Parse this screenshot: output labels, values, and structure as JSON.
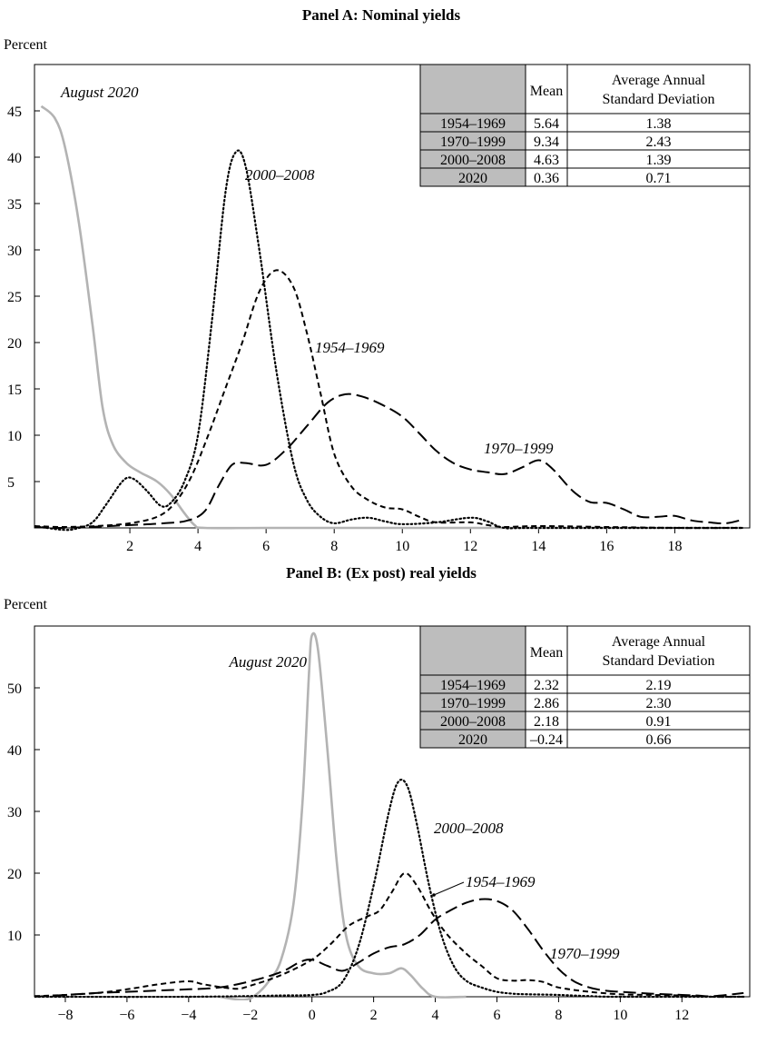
{
  "chart_data": [
    {
      "type": "line",
      "title": "Panel A: Nominal yields",
      "ylabel": "Percent",
      "xlabel": "",
      "xlim": [
        -0.8,
        20.2
      ],
      "ylim": [
        0,
        50
      ],
      "xticks": [
        2,
        4,
        6,
        8,
        10,
        12,
        14,
        16,
        18
      ],
      "yticks": [
        5,
        10,
        15,
        20,
        25,
        30,
        35,
        40,
        45
      ],
      "series": [
        {
          "name": "August 2020",
          "style": "solid-gray",
          "points": [
            [
              -0.6,
              45.5
            ],
            [
              -0.2,
              44.2
            ],
            [
              0.1,
              41
            ],
            [
              0.5,
              33
            ],
            [
              0.9,
              22
            ],
            [
              1.2,
              13
            ],
            [
              1.5,
              9
            ],
            [
              1.9,
              7
            ],
            [
              2.3,
              6
            ],
            [
              2.8,
              5
            ],
            [
              3.2,
              3.6
            ],
            [
              3.6,
              1.6
            ],
            [
              3.9,
              0.3
            ],
            [
              4.2,
              0
            ],
            [
              6,
              0
            ],
            [
              9,
              0
            ],
            [
              20,
              0
            ]
          ]
        },
        {
          "name": "2000–2008",
          "style": "dotted",
          "points": [
            [
              -0.8,
              0.2
            ],
            [
              0,
              -0.2
            ],
            [
              0.4,
              -0.1
            ],
            [
              0.9,
              0.6
            ],
            [
              1.3,
              2.5
            ],
            [
              1.8,
              5.1
            ],
            [
              2.1,
              5.3
            ],
            [
              2.5,
              4
            ],
            [
              2.9,
              2.4
            ],
            [
              3.2,
              2.7
            ],
            [
              3.6,
              5
            ],
            [
              4,
              10
            ],
            [
              4.4,
              22
            ],
            [
              4.8,
              36
            ],
            [
              5.1,
              40.5
            ],
            [
              5.4,
              39
            ],
            [
              5.8,
              30
            ],
            [
              6.3,
              17
            ],
            [
              6.8,
              7
            ],
            [
              7.2,
              3
            ],
            [
              7.6,
              1.2
            ],
            [
              8,
              0.5
            ],
            [
              8.5,
              0.9
            ],
            [
              9,
              1.1
            ],
            [
              9.5,
              0.7
            ],
            [
              10,
              0.4
            ],
            [
              11,
              0.6
            ],
            [
              12,
              1.1
            ],
            [
              12.5,
              0.7
            ],
            [
              13,
              0
            ],
            [
              14,
              0
            ],
            [
              20,
              0
            ]
          ]
        },
        {
          "name": "1954–1969",
          "style": "short-dash",
          "points": [
            [
              -0.8,
              0.2
            ],
            [
              0,
              0.1
            ],
            [
              1,
              0.2
            ],
            [
              2,
              0.5
            ],
            [
              2.8,
              1.2
            ],
            [
              3.3,
              2.6
            ],
            [
              3.8,
              5.5
            ],
            [
              4.3,
              10
            ],
            [
              4.8,
              15
            ],
            [
              5.3,
              20
            ],
            [
              5.8,
              25.5
            ],
            [
              6.3,
              27.8
            ],
            [
              6.8,
              26
            ],
            [
              7.2,
              21
            ],
            [
              7.6,
              14.5
            ],
            [
              8,
              8
            ],
            [
              8.5,
              4.5
            ],
            [
              9,
              3
            ],
            [
              9.5,
              2.2
            ],
            [
              10,
              2
            ],
            [
              10.5,
              1.2
            ],
            [
              11,
              0.6
            ],
            [
              12,
              0.6
            ],
            [
              12.5,
              0.3
            ],
            [
              13,
              0.1
            ],
            [
              14,
              0.2
            ],
            [
              16,
              0.1
            ],
            [
              18,
              0
            ],
            [
              20,
              0
            ]
          ]
        },
        {
          "name": "1970–1999",
          "style": "long-dash",
          "points": [
            [
              -0.8,
              0.1
            ],
            [
              0,
              0
            ],
            [
              2,
              0.3
            ],
            [
              3,
              0.5
            ],
            [
              3.7,
              0.8
            ],
            [
              4.2,
              1.8
            ],
            [
              4.6,
              4.5
            ],
            [
              5,
              6.8
            ],
            [
              5.4,
              7
            ],
            [
              6,
              6.8
            ],
            [
              6.6,
              8.5
            ],
            [
              7.2,
              11
            ],
            [
              7.8,
              13.5
            ],
            [
              8.3,
              14.4
            ],
            [
              8.8,
              14.2
            ],
            [
              9.4,
              13.3
            ],
            [
              10,
              12
            ],
            [
              10.5,
              10.2
            ],
            [
              11,
              8.3
            ],
            [
              11.5,
              7
            ],
            [
              12,
              6.3
            ],
            [
              12.5,
              6
            ],
            [
              13,
              5.8
            ],
            [
              13.5,
              6.5
            ],
            [
              14,
              7.3
            ],
            [
              14.4,
              6.4
            ],
            [
              15,
              4
            ],
            [
              15.5,
              2.8
            ],
            [
              16,
              2.7
            ],
            [
              16.5,
              2
            ],
            [
              17,
              1.2
            ],
            [
              17.5,
              1.2
            ],
            [
              18,
              1.3
            ],
            [
              18.5,
              0.8
            ],
            [
              19,
              0.6
            ],
            [
              19.5,
              0.5
            ],
            [
              20,
              0.9
            ]
          ]
        }
      ],
      "table": {
        "headers": [
          "",
          "Mean",
          "Average Annual Standard Deviation"
        ],
        "header_sd_line1": "Average Annual",
        "header_sd_line2": "Standard Deviation",
        "rows": [
          {
            "period": "1954–1969",
            "mean": "5.64",
            "sd": "1.38"
          },
          {
            "period": "1970–1999",
            "mean": "9.34",
            "sd": "2.43"
          },
          {
            "period": "2000–2008",
            "mean": "4.63",
            "sd": "1.39"
          },
          {
            "period": "2020",
            "mean": "0.36",
            "sd": "0.71"
          }
        ]
      }
    },
    {
      "type": "line",
      "title": "Panel B: (Ex post) real yields",
      "ylabel": "Percent",
      "xlabel": "",
      "xlim": [
        -9,
        14.2
      ],
      "ylim": [
        0,
        60
      ],
      "xticks": [
        -8,
        -6,
        -4,
        -2,
        0,
        2,
        4,
        6,
        8,
        10,
        12
      ],
      "yticks": [
        10,
        20,
        30,
        40,
        50
      ],
      "series": [
        {
          "name": "August 2020",
          "style": "solid-gray",
          "points": [
            [
              -3,
              0
            ],
            [
              -2.2,
              -0.5
            ],
            [
              -1.8,
              0.4
            ],
            [
              -1.4,
              2.5
            ],
            [
              -1,
              6
            ],
            [
              -0.6,
              15
            ],
            [
              -0.3,
              32
            ],
            [
              -0.1,
              52
            ],
            [
              0,
              58.5
            ],
            [
              0.2,
              56
            ],
            [
              0.5,
              40
            ],
            [
              0.8,
              22
            ],
            [
              1.1,
              10
            ],
            [
              1.5,
              5
            ],
            [
              2,
              3.8
            ],
            [
              2.5,
              3.8
            ],
            [
              2.9,
              4.6
            ],
            [
              3.2,
              3.5
            ],
            [
              3.6,
              1.3
            ],
            [
              4,
              0
            ],
            [
              5,
              0
            ]
          ]
        },
        {
          "name": "2000–2008",
          "style": "dotted",
          "points": [
            [
              -9,
              0
            ],
            [
              -4,
              0
            ],
            [
              -1,
              0.2
            ],
            [
              0,
              0.3
            ],
            [
              0.5,
              0.8
            ],
            [
              1,
              2.5
            ],
            [
              1.5,
              8
            ],
            [
              2,
              18
            ],
            [
              2.5,
              30
            ],
            [
              2.8,
              34.8
            ],
            [
              3.1,
              34
            ],
            [
              3.4,
              28
            ],
            [
              3.8,
              18
            ],
            [
              4.2,
              10
            ],
            [
              4.6,
              5
            ],
            [
              5,
              2.6
            ],
            [
              5.5,
              1.5
            ],
            [
              6,
              0.8
            ],
            [
              6.5,
              0.5
            ],
            [
              7,
              0.4
            ],
            [
              8,
              0.3
            ],
            [
              9,
              0.1
            ],
            [
              10,
              0
            ],
            [
              14,
              0
            ]
          ]
        },
        {
          "name": "1954–1969",
          "style": "short-dash",
          "points": [
            [
              -9,
              0.1
            ],
            [
              -8,
              0.3
            ],
            [
              -7,
              0.6
            ],
            [
              -6,
              1.2
            ],
            [
              -5,
              2
            ],
            [
              -4,
              2.5
            ],
            [
              -3.5,
              2
            ],
            [
              -2.5,
              1.3
            ],
            [
              -2,
              1.8
            ],
            [
              -1,
              3.5
            ],
            [
              0,
              6
            ],
            [
              0.6,
              8.5
            ],
            [
              1.2,
              11.5
            ],
            [
              1.8,
              13
            ],
            [
              2.2,
              14
            ],
            [
              2.6,
              17
            ],
            [
              3,
              20
            ],
            [
              3.4,
              18
            ],
            [
              3.9,
              13.5
            ],
            [
              4.4,
              10
            ],
            [
              5,
              7
            ],
            [
              5.5,
              5
            ],
            [
              6,
              3
            ],
            [
              6.5,
              2.6
            ],
            [
              7,
              2.7
            ],
            [
              7.5,
              2.4
            ],
            [
              8,
              1.5
            ],
            [
              9,
              0.8
            ],
            [
              10,
              0.4
            ],
            [
              11,
              0.3
            ],
            [
              12,
              0.2
            ],
            [
              13,
              0
            ],
            [
              14,
              0
            ]
          ]
        },
        {
          "name": "1970–1999",
          "style": "long-dash",
          "points": [
            [
              -9,
              0
            ],
            [
              -8,
              0.3
            ],
            [
              -7,
              0.6
            ],
            [
              -6,
              0.8
            ],
            [
              -5,
              1
            ],
            [
              -4,
              1.2
            ],
            [
              -3,
              1.5
            ],
            [
              -2,
              2.5
            ],
            [
              -1,
              4
            ],
            [
              -0.4,
              5.6
            ],
            [
              0,
              6
            ],
            [
              0.5,
              5
            ],
            [
              1,
              4.2
            ],
            [
              1.5,
              5.5
            ],
            [
              2,
              7
            ],
            [
              2.5,
              8
            ],
            [
              3,
              8.5
            ],
            [
              3.5,
              10
            ],
            [
              4,
              12.5
            ],
            [
              4.5,
              14
            ],
            [
              5,
              15.2
            ],
            [
              5.5,
              15.8
            ],
            [
              6,
              15.5
            ],
            [
              6.5,
              14
            ],
            [
              7,
              11
            ],
            [
              7.5,
              7.5
            ],
            [
              8,
              4.5
            ],
            [
              8.5,
              2.5
            ],
            [
              9,
              1.5
            ],
            [
              9.5,
              1
            ],
            [
              10,
              0.8
            ],
            [
              11,
              0.5
            ],
            [
              12,
              0.3
            ],
            [
              12.5,
              0.2
            ],
            [
              13,
              0.1
            ],
            [
              14,
              0.6
            ]
          ]
        }
      ],
      "table": {
        "headers": [
          "",
          "Mean",
          "Average Annual Standard Deviation"
        ],
        "header_sd_line1": "Average Annual",
        "header_sd_line2": "Standard Deviation",
        "rows": [
          {
            "period": "1954–1969",
            "mean": "2.32",
            "sd": "2.19"
          },
          {
            "period": "1970–1999",
            "mean": "2.86",
            "sd": "2.30"
          },
          {
            "period": "2000–2008",
            "mean": "2.18",
            "sd": "0.91"
          },
          {
            "period": "2020",
            "mean": "–0.24",
            "sd": "0.66"
          }
        ]
      }
    }
  ]
}
